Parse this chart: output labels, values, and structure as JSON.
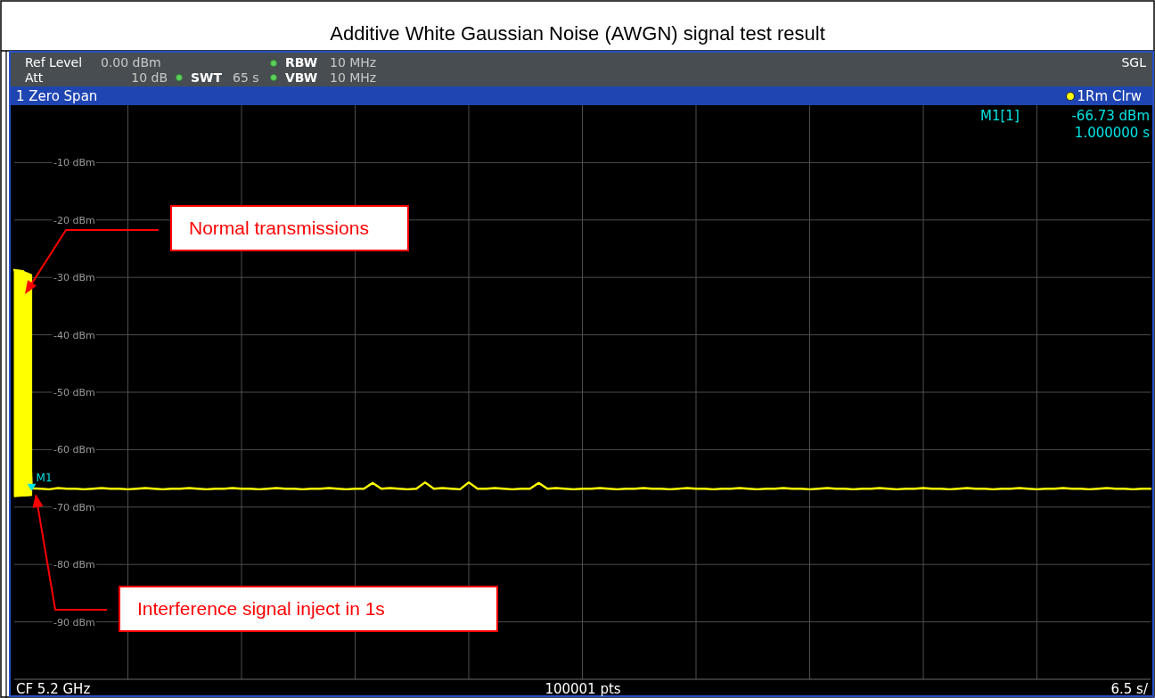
{
  "chart_data": {
    "type": "line",
    "title": "Additive White Gaussian Noise (AWGN) signal test result",
    "subtitle": "1 Zero Span",
    "categories": [
      null,
      null,
      null,
      null,
      null,
      null,
      null,
      null,
      null,
      null,
      null,
      null,
      null,
      null,
      null,
      null,
      null,
      null,
      null,
      null,
      null,
      null,
      null,
      null,
      null,
      null,
      null,
      null,
      null,
      null,
      null,
      null,
      null,
      null,
      null,
      null,
      null,
      null,
      null,
      null,
      null,
      null,
      null,
      null,
      null,
      null,
      null,
      null,
      null,
      null,
      null,
      null,
      null,
      null,
      null,
      null,
      null,
      null,
      null,
      null,
      null,
      null,
      null,
      null,
      null,
      null,
      null,
      null,
      null,
      null,
      null,
      null,
      null,
      null,
      null,
      null,
      null,
      null,
      null,
      null,
      null,
      null,
      null,
      null,
      null,
      null,
      null,
      null,
      null,
      null,
      null,
      null,
      null,
      null,
      null,
      null,
      null,
      null,
      null,
      null,
      null,
      null,
      null,
      null,
      null,
      null,
      null,
      null,
      null,
      null,
      null,
      null,
      null,
      null,
      null,
      null,
      null,
      null,
      null,
      null,
      null,
      null,
      null,
      null,
      null,
      null,
      null,
      null,
      null,
      null,
      null
    ],
    "ylim": [
      -100,
      0
    ],
    "yticks": [
      {
        "value": -10,
        "label": "-10 dBm"
      },
      {
        "value": -20,
        "label": "-20 dBm"
      },
      {
        "value": -30,
        "label": "-30 dBm"
      },
      {
        "value": -40,
        "label": "-40 dBm"
      },
      {
        "value": -50,
        "label": "-50 dBm"
      },
      {
        "value": -60,
        "label": "-60 dBm"
      },
      {
        "value": -70,
        "label": "-70 dBm"
      },
      {
        "value": -80,
        "label": "-80 dBm"
      },
      {
        "value": -90,
        "label": "-90 dBm"
      }
    ],
    "tick_labels": "y",
    "grid": true,
    "legend": "top right",
    "series": [
      {
        "name": "1Rm Clrw",
        "color": "#ffff00",
        "values": [
          -28.7,
          -28.9,
          -66.73,
          -66.8,
          -66.9,
          -66.7,
          -66.8,
          -66.8,
          -66.9,
          -66.8,
          -66.7,
          -66.8,
          -66.8,
          -66.9,
          -66.8,
          -66.7,
          -66.8,
          -66.9,
          -66.8,
          -66.8,
          -66.7,
          -66.8,
          -66.9,
          -66.8,
          -66.8,
          -66.7,
          -66.8,
          -66.8,
          -66.9,
          -66.8,
          -66.7,
          -66.8,
          -66.8,
          -66.9,
          -66.8,
          -66.8,
          -66.7,
          -66.8,
          -66.9,
          -66.8,
          -66.8,
          -65.8,
          -66.8,
          -66.7,
          -66.8,
          -66.9,
          -66.8,
          -65.7,
          -66.8,
          -66.7,
          -66.8,
          -66.9,
          -65.7,
          -66.8,
          -66.8,
          -66.7,
          -66.8,
          -66.9,
          -66.8,
          -66.8,
          -65.8,
          -66.8,
          -66.7,
          -66.8,
          -66.9,
          -66.8,
          -66.8,
          -66.7,
          -66.8,
          -66.9,
          -66.8,
          -66.8,
          -66.7,
          -66.8,
          -66.8,
          -66.9,
          -66.8,
          -66.7,
          -66.8,
          -66.8,
          -66.9,
          -66.8,
          -66.8,
          -66.7,
          -66.8,
          -66.9,
          -66.8,
          -66.8,
          -66.7,
          -66.8,
          -66.8,
          -66.9,
          -66.8,
          -66.7,
          -66.8,
          -66.8,
          -66.9,
          -66.8,
          -66.8,
          -66.7,
          -66.8,
          -66.9,
          -66.8,
          -66.8,
          -66.7,
          -66.8,
          -66.8,
          -66.9,
          -66.8,
          -66.7,
          -66.8,
          -66.8,
          -66.9,
          -66.8,
          -66.8,
          -66.7,
          -66.8,
          -66.9,
          -66.8,
          -66.8,
          -66.7,
          -66.8,
          -66.8,
          -66.9,
          -66.8,
          -66.7,
          -66.8,
          -66.8,
          -66.9,
          -66.8,
          -66.8
        ],
        "lower": [
          -68.2,
          -68.1,
          -68,
          null,
          null,
          null,
          null,
          null,
          null,
          null,
          null,
          null,
          null,
          null,
          null,
          null,
          null,
          null,
          null,
          null,
          null,
          null,
          null,
          null,
          null,
          null,
          null,
          null,
          null,
          null,
          null,
          null,
          null,
          null,
          null,
          null,
          null,
          null,
          null,
          null,
          null,
          null,
          null,
          null,
          null,
          null,
          null,
          null,
          null,
          null,
          null,
          null,
          null,
          null,
          null,
          null,
          null,
          null,
          null,
          null,
          null,
          null,
          null,
          null,
          null,
          null,
          null,
          null,
          null,
          null,
          null,
          null,
          null,
          null,
          null,
          null,
          null,
          null,
          null,
          null,
          null,
          null,
          null,
          null,
          null,
          null,
          null,
          null,
          null,
          null,
          null,
          null,
          null,
          null,
          null,
          null,
          null,
          null,
          null,
          null,
          null,
          null,
          null,
          null,
          null,
          null,
          null,
          null,
          null,
          null,
          null,
          null,
          null,
          null,
          null,
          null,
          null,
          null,
          null,
          null,
          null,
          null,
          null,
          null,
          null,
          null,
          null,
          null,
          null,
          null,
          null
        ],
        "upper": [
          -28.7,
          -28.9,
          -29.5,
          null,
          null,
          null,
          null,
          null,
          null,
          null,
          null,
          null,
          null,
          null,
          null,
          null,
          null,
          null,
          null,
          null,
          null,
          null,
          null,
          null,
          null,
          null,
          null,
          null,
          null,
          null,
          null,
          null,
          null,
          null,
          null,
          null,
          null,
          null,
          null,
          null,
          null,
          null,
          null,
          null,
          null,
          null,
          null,
          null,
          null,
          null,
          null,
          null,
          null,
          null,
          null,
          null,
          null,
          null,
          null,
          null,
          null,
          null,
          null,
          null,
          null,
          null,
          null,
          null,
          null,
          null,
          null,
          null,
          null,
          null,
          null,
          null,
          null,
          null,
          null,
          null,
          null,
          null,
          null,
          null,
          null,
          null,
          null,
          null,
          null,
          null,
          null,
          null,
          null,
          null,
          null,
          null,
          null,
          null,
          null,
          null,
          null,
          null,
          null,
          null,
          null,
          null,
          null,
          null,
          null,
          null,
          null,
          null,
          null,
          null,
          null,
          null,
          null,
          null,
          null,
          null,
          null,
          null,
          null,
          null,
          null,
          null,
          null,
          null,
          null,
          null,
          null
        ]
      },
      {
        "name": "M1",
        "type": "scatter",
        "color": "#00e5e5",
        "marker": "triangle",
        "values": [
          null,
          null,
          -66.73,
          null,
          null,
          null,
          null,
          null,
          null,
          null,
          null,
          null,
          null,
          null,
          null,
          null,
          null,
          null,
          null,
          null,
          null,
          null,
          null,
          null,
          null,
          null,
          null,
          null,
          null,
          null,
          null,
          null,
          null,
          null,
          null,
          null,
          null,
          null,
          null,
          null,
          null,
          null,
          null,
          null,
          null,
          null,
          null,
          null,
          null,
          null,
          null,
          null,
          null,
          null,
          null,
          null,
          null,
          null,
          null,
          null,
          null,
          null,
          null,
          null,
          null,
          null,
          null,
          null,
          null,
          null,
          null,
          null,
          null,
          null,
          null,
          null,
          null,
          null,
          null,
          null,
          null,
          null,
          null,
          null,
          null,
          null,
          null,
          null,
          null,
          null,
          null,
          null,
          null,
          null,
          null,
          null,
          null,
          null,
          null,
          null,
          null,
          null,
          null,
          null,
          null,
          null,
          null,
          null,
          null,
          null,
          null,
          null,
          null,
          null,
          null,
          null,
          null,
          null,
          null,
          null,
          null,
          null,
          null,
          null,
          null,
          null,
          null,
          null,
          null,
          null,
          null
        ]
      }
    ],
    "annotations": [
      "Ref Level",
      "0.00 dBm",
      "Att",
      "10 dB",
      "SWT",
      "65 s",
      "RBW",
      "10 MHz",
      "VBW",
      "10 MHz",
      "SGL",
      "M1[1]",
      "-66.73 dBm",
      "1.000000 s",
      "CF 5.2 GHz",
      "100001 pts",
      "6.5 s/",
      "Normal transmissions",
      "Interference signal inject in 1s"
    ]
  }
}
